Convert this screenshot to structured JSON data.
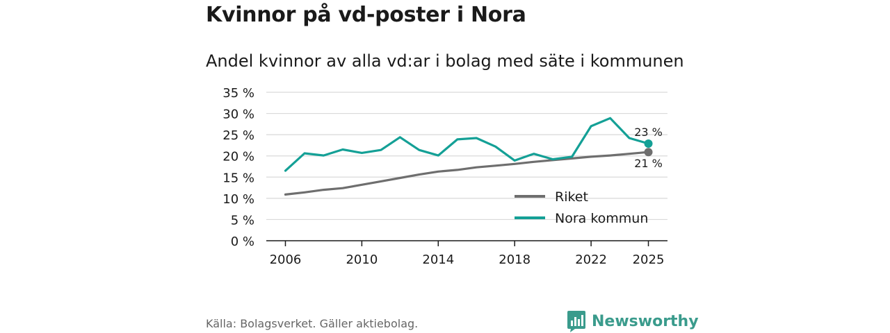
{
  "title": "Kvinnor på vd-poster i Nora",
  "subtitle": "Andel kvinnor av alla vd:ar i bolag med säte i kommunen",
  "source": "Källa: Bolagsverket. Gäller aktiebolag.",
  "brand": {
    "name": "Newsworthy",
    "color": "#3a9b8c",
    "icon": "newsworthy-logo-icon"
  },
  "colors": {
    "riket": "#6e6e6e",
    "nora": "#14a096",
    "grid": "#d9d9d9",
    "axis": "#1a1a1a"
  },
  "chart_data": {
    "type": "line",
    "x": [
      2006,
      2007,
      2008,
      2009,
      2010,
      2011,
      2012,
      2013,
      2014,
      2015,
      2016,
      2017,
      2018,
      2019,
      2020,
      2021,
      2022,
      2023,
      2024,
      2025
    ],
    "series": [
      {
        "name": "Riket",
        "key": "riket",
        "values": [
          10.9,
          11.4,
          12.0,
          12.4,
          13.2,
          14.0,
          14.8,
          15.6,
          16.3,
          16.7,
          17.3,
          17.7,
          18.1,
          18.6,
          19.0,
          19.4,
          19.8,
          20.1,
          20.5,
          20.9
        ],
        "end_label": "21 %"
      },
      {
        "name": "Nora kommun",
        "key": "nora",
        "values": [
          16.5,
          20.6,
          20.1,
          21.5,
          20.7,
          21.4,
          24.4,
          21.4,
          20.1,
          23.9,
          24.2,
          22.2,
          18.9,
          20.5,
          19.2,
          19.8,
          27.0,
          28.9,
          24.2,
          22.9
        ],
        "end_label": "23 %"
      }
    ],
    "y_ticks": [
      0,
      5,
      10,
      15,
      20,
      25,
      30,
      35
    ],
    "y_tick_labels": [
      "0 %",
      "5 %",
      "10 %",
      "15 %",
      "20 %",
      "25 %",
      "30 %",
      "35 %"
    ],
    "x_ticks": [
      2006,
      2010,
      2014,
      2018,
      2022,
      2025
    ],
    "x_tick_labels": [
      "2006",
      "2010",
      "2014",
      "2018",
      "2022",
      "2025"
    ],
    "ylim": [
      0,
      35
    ],
    "xlim": [
      2005,
      2026
    ],
    "grid": true,
    "legend": [
      {
        "label": "Riket",
        "key": "riket"
      },
      {
        "label": "Nora kommun",
        "key": "nora"
      }
    ],
    "legend_position": "bottom-right"
  }
}
